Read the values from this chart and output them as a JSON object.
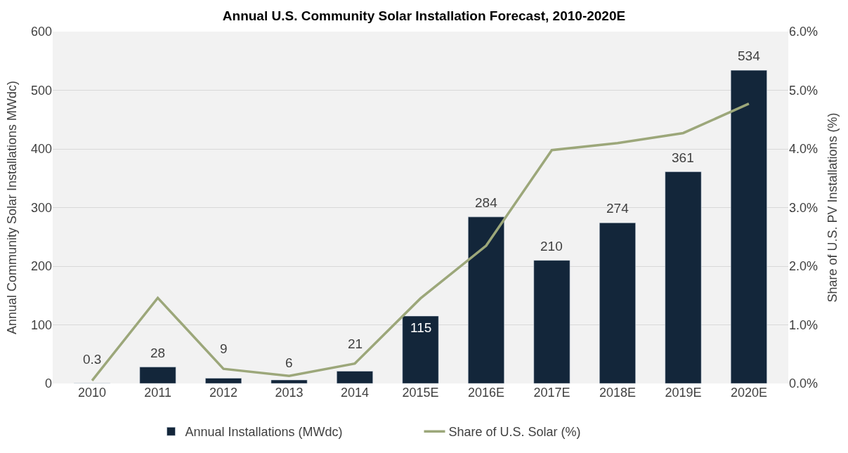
{
  "chart_data": {
    "type": "bar",
    "title": "Annual U.S. Community Solar Installation Forecast, 2010-2020E",
    "ylabel": "Annual Community Solar Installations MWdc)",
    "y2label": "Share of U.S. PV Installations (%)",
    "categories": [
      "2010",
      "2011",
      "2012",
      "2013",
      "2014",
      "2015E",
      "2016E",
      "2017E",
      "2018E",
      "2019E",
      "2020E"
    ],
    "series": [
      {
        "name": "Annual Installations (MWdc)",
        "color": "#13263a",
        "values": [
          0.3,
          28,
          9,
          6,
          21,
          115,
          284,
          210,
          274,
          361,
          534
        ],
        "data_labels": true
      },
      {
        "name": "Share of U.S. Solar (%)",
        "type": "line",
        "axis": "y2",
        "color": "#9ca77a",
        "marker": "none",
        "line_style": "solid",
        "values": [
          0.05,
          1.46,
          0.25,
          0.13,
          0.34,
          1.45,
          2.35,
          3.98,
          4.1,
          4.27,
          4.77
        ]
      }
    ],
    "ylim": [
      0,
      600
    ],
    "yticks": [
      0,
      100,
      200,
      300,
      400,
      500,
      600
    ],
    "y2lim": [
      0,
      6
    ],
    "y2ticks": [
      {
        "value": 0,
        "label": "0.0%"
      },
      {
        "value": 1,
        "label": "1.0%"
      },
      {
        "value": 2,
        "label": "2.0%"
      },
      {
        "value": 3,
        "label": "3.0%"
      },
      {
        "value": 4,
        "label": "4.0%"
      },
      {
        "value": 5,
        "label": "5.0%"
      },
      {
        "value": 6,
        "label": "6.0%"
      }
    ],
    "grid": "y",
    "legend": "bottom"
  }
}
